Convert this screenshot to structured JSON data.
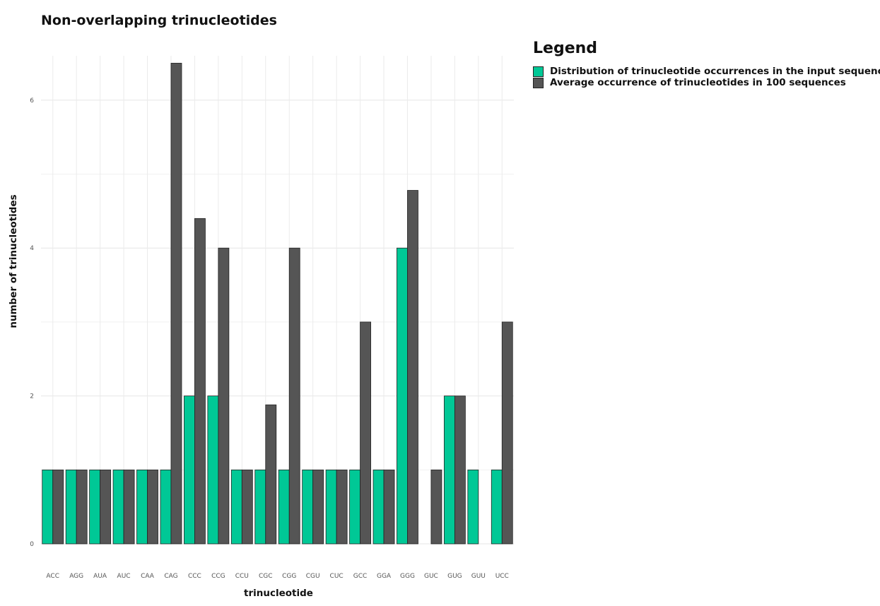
{
  "chart_data": {
    "type": "bar",
    "title": "Non-overlapping trinucleotides",
    "xlabel": "trinucleotide",
    "ylabel": "number of trinucleotides",
    "categories": [
      "ACC",
      "AGG",
      "AUA",
      "AUC",
      "CAA",
      "CAG",
      "CCC",
      "CCG",
      "CCU",
      "CGC",
      "CGG",
      "CGU",
      "CUC",
      "GCC",
      "GGA",
      "GGG",
      "GUC",
      "GUG",
      "GUU",
      "UCC"
    ],
    "series": [
      {
        "name": "Distribution of trinucleotide occurrences in the input sequence",
        "color": "#00c896",
        "values": [
          1,
          1,
          1,
          1,
          1,
          1,
          2,
          2,
          1,
          1,
          1,
          1,
          1,
          1,
          1,
          4,
          0,
          2,
          1,
          1
        ]
      },
      {
        "name": "Average occurrence of trinucleotides in 100 sequences",
        "color": "#555555",
        "values": [
          1,
          1,
          1,
          1,
          1,
          6.5,
          4.4,
          4,
          1,
          1.88,
          4,
          1,
          1,
          3,
          1,
          4.78,
          1,
          2,
          0,
          3
        ]
      }
    ],
    "ylim": [
      0,
      6.6
    ],
    "yticks": [
      0,
      2,
      4,
      6
    ],
    "grid": true,
    "legend": {
      "title": "Legend",
      "position": "right"
    }
  }
}
